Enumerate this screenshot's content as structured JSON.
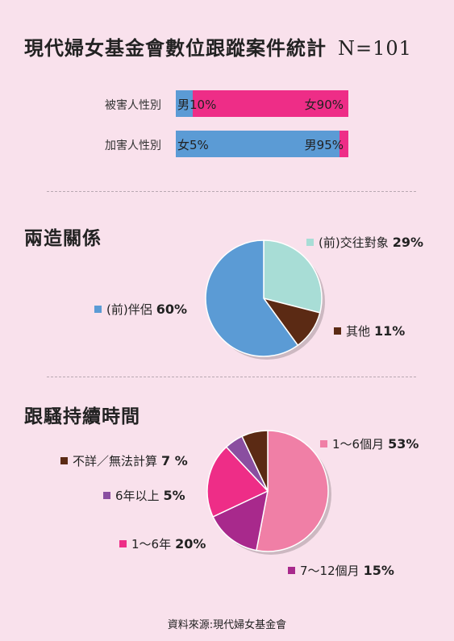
{
  "title": "現代婦女基金會數位跟蹤案件統計",
  "n_label": "N=101",
  "chart_data": [
    {
      "type": "bar",
      "orientation": "horizontal",
      "stacked": true,
      "categories": [
        "被害人性別",
        "加害人性別"
      ],
      "series": [
        {
          "name": "男",
          "values": [
            10,
            95
          ],
          "color": "#5b9bd5",
          "labels": [
            "男10%",
            "男95%"
          ]
        },
        {
          "name": "女",
          "values": [
            90,
            5
          ],
          "color": "#ee2d87",
          "labels": [
            "女90%",
            "女5%"
          ]
        }
      ],
      "xlim": [
        0,
        100
      ],
      "grid": false
    },
    {
      "type": "pie",
      "title": "兩造關係",
      "categories": [
        "(前)交往對象",
        "其他",
        "(前)伴侶"
      ],
      "values": [
        29,
        11,
        60
      ],
      "value_labels": [
        "29%",
        "11%",
        "60%"
      ],
      "colors": [
        "#a8ddd6",
        "#5b2a14",
        "#5b9bd5"
      ]
    },
    {
      "type": "pie",
      "title": "跟騷持續時間",
      "categories": [
        "1～6個月",
        "7～12個月",
        "1～6年",
        "6年以上",
        "不詳／無法計算"
      ],
      "values": [
        53,
        15,
        20,
        5,
        7
      ],
      "value_labels": [
        "53%",
        "15%",
        "20%",
        "5%",
        "7 %"
      ],
      "colors": [
        "#f07fa6",
        "#a8298c",
        "#ee2d87",
        "#8a4ea0",
        "#5b2a14"
      ]
    }
  ],
  "source": "資料來源:現代婦女基金會"
}
